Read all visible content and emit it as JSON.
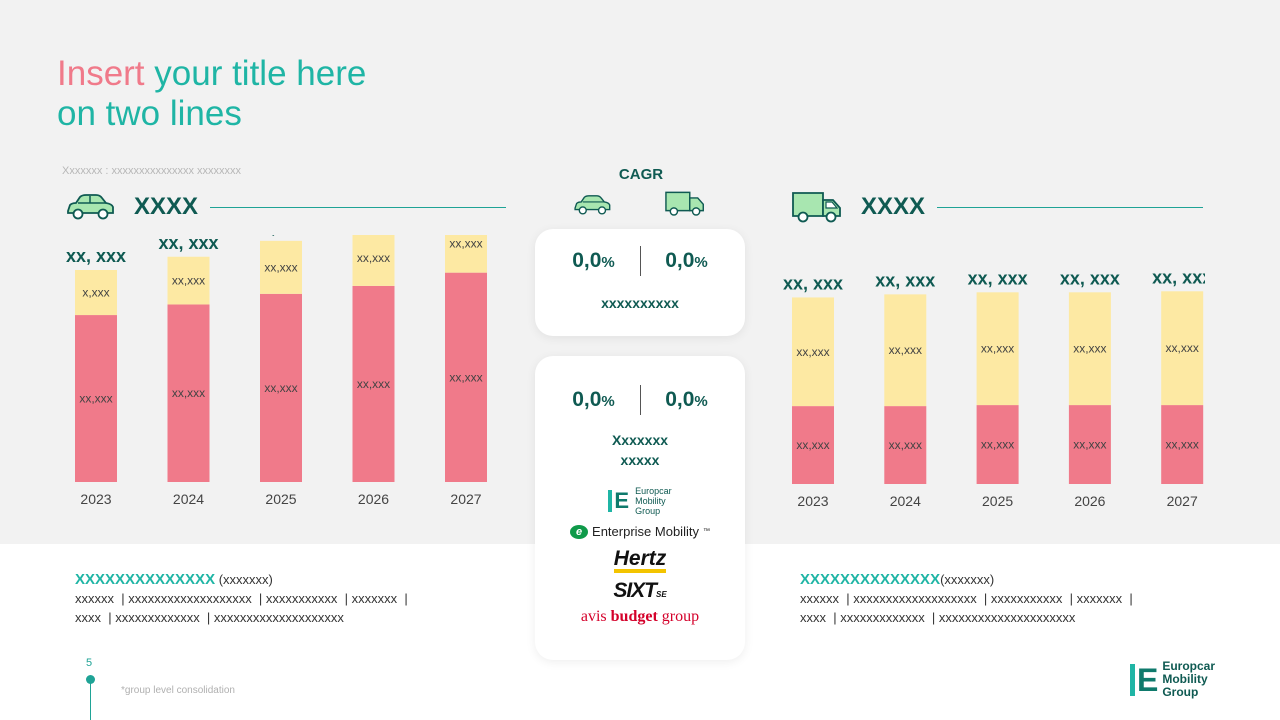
{
  "title": {
    "part1": "Insert",
    "part2": " your title here",
    "line2": "on two lines"
  },
  "subtitle": "Xxxxxxx : xxxxxxxxxxxxxxx xxxxxxxx",
  "left_section": {
    "label": "XXXX",
    "icon": "car-icon"
  },
  "right_section": {
    "label": "XXXX",
    "icon": "van-icon"
  },
  "cagr": {
    "title": "CAGR",
    "card1": {
      "left": "0,0",
      "right": "0,0",
      "unit": "%",
      "note": "xxxxxxxxxx"
    },
    "card2": {
      "left": "0,0",
      "right": "0,0",
      "unit": "%",
      "note_line1": "Xxxxxxx",
      "note_line2": "xxxxx"
    },
    "logos": {
      "europcar": {
        "mark": "E",
        "line1": "Europcar",
        "line2": "Mobility",
        "line3": "Group"
      },
      "enterprise": {
        "mark": "e",
        "text": "Enterprise Mobility",
        "tm": "™"
      },
      "hertz": "Hertz",
      "sixt": {
        "text": "SIXT",
        "suffix": "SE"
      },
      "avis": {
        "part1": "avis",
        "part2": "budget",
        "part3": "group"
      }
    }
  },
  "chart_data": [
    {
      "type": "bar",
      "stacked": true,
      "categories": [
        "2023",
        "2024",
        "2025",
        "2026",
        "2027"
      ],
      "series": [
        {
          "values": [
            63,
            67,
            71,
            74,
            79
          ],
          "labels": [
            "xx,xxx",
            "xx,xxx",
            "xx,xxx",
            "xx,xxx",
            "xx,xxx"
          ],
          "color": "#f07a8a"
        },
        {
          "values": [
            17,
            18,
            20,
            21,
            22
          ],
          "labels": [
            "x,xxx",
            "xx,xxx",
            "xx,xxx",
            "xx,xxx",
            "xx,xxx"
          ],
          "color": "#fde9a3"
        }
      ],
      "total_labels": [
        "xx, xxx",
        "xx, xxx",
        "xx, xxx",
        "xx, xxx",
        "xx, xxx"
      ],
      "ylim": [
        0,
        100
      ],
      "grid": false,
      "legend": "none"
    },
    {
      "type": "bar",
      "stacked": true,
      "categories": [
        "2023",
        "2024",
        "2025",
        "2026",
        "2027"
      ],
      "series": [
        {
          "values": [
            38,
            38,
            38.5,
            38.5,
            38.5
          ],
          "labels": [
            "xx,xxx",
            "xx,xxx",
            "xx,xxx",
            "xx,xxx",
            "xx,xxx"
          ],
          "color": "#f07a8a"
        },
        {
          "values": [
            53,
            54.5,
            55,
            55,
            55.5
          ],
          "labels": [
            "xx,xxx",
            "xx,xxx",
            "xx,xxx",
            "xx,xxx",
            "xx,xxx"
          ],
          "color": "#fde9a3"
        }
      ],
      "total_labels": [
        "xx, xxx",
        "xx, xxx",
        "xx, xxx",
        "xx, xxx",
        "xx, xxx"
      ],
      "ylim": [
        0,
        100
      ],
      "grid": false,
      "legend": "none"
    }
  ],
  "bottom_left": {
    "heading": "XXXXXXXXXXXXXX",
    "heading_sub": " (xxxxxxx)",
    "line1": "xxxxxx  | xxxxxxxxxxxxxxxxxxx  | xxxxxxxxxxx  | xxxxxxx  |",
    "line2": "xxxx  | xxxxxxxxxxxxx  | xxxxxxxxxxxxxxxxxxxx"
  },
  "bottom_right": {
    "heading": "XXXXXXXXXXXXXX",
    "heading_sub": "(xxxxxxx)",
    "line1": "xxxxxx  | xxxxxxxxxxxxxxxxxxx  | xxxxxxxxxxx  | xxxxxxx  |",
    "line2": "xxxx  | xxxxxxxxxxxxx  | xxxxxxxxxxxxxxxxxxxxx"
  },
  "page_number": "5",
  "footnote": "*group level consolidation",
  "corner_logo": {
    "mark": "E",
    "line1": "Europcar",
    "line2": "Mobility",
    "line3": "Group"
  },
  "colors": {
    "teal": "#1fb5a5",
    "dark_teal": "#0f5a52",
    "pink": "#f07a8a",
    "yellow": "#fde9a3",
    "car_green": "#a8e6b0"
  }
}
